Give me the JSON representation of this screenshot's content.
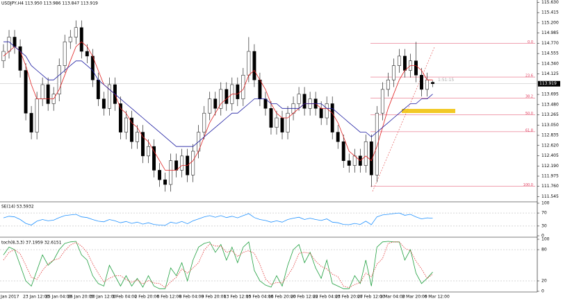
{
  "chart_data": [
    {
      "type": "candlestick",
      "title": "USDJPY,H4 113.950 113.986 113.847 113.919",
      "bid": {
        "value": 113.919,
        "label": "113.919"
      },
      "timer": "1:51:15",
      "categories": [
        "Jan 2017",
        null,
        null,
        null,
        "23 Jan 12:00",
        null,
        null,
        null,
        "25 Jan 04:00",
        null,
        null,
        null,
        "26 Jan 20:00",
        null,
        null,
        null,
        "30 Jan 12:00",
        null,
        null,
        null,
        "1 Feb 04:00",
        null,
        null,
        null,
        "2 Feb 20:00",
        null,
        null,
        null,
        "6 Feb 12:00",
        null,
        null,
        null,
        "8 Feb 04:00",
        null,
        null,
        null,
        "9 Feb 20:00",
        null,
        null,
        null,
        "13 Feb 12:00",
        null,
        null,
        null,
        "15 Feb 04:00",
        null,
        null,
        null,
        "16 Feb 20:00",
        null,
        null,
        null,
        "20 Feb 12:00",
        null,
        null,
        null,
        "22 Feb 04:00",
        null,
        null,
        null,
        "23 Feb 20:00",
        null,
        null,
        null,
        "27 Feb 12:00",
        null,
        null,
        null,
        "1 Mar 04:00",
        null,
        null,
        null,
        "2 Mar 20:00",
        null,
        null,
        null,
        "6 Mar 12:00",
        null
      ],
      "open": [
        114.4,
        114.6,
        114.9,
        114.7,
        114.2,
        113.3,
        112.9,
        113.6,
        113.9,
        113.5,
        113.7,
        114.3,
        114.8,
        114.9,
        115.1,
        114.6,
        114.5,
        114.0,
        113.6,
        113.4,
        113.9,
        113.5,
        112.9,
        113.2,
        112.7,
        112.9,
        112.4,
        112.6,
        112.1,
        111.9,
        111.8,
        112.3,
        112.1,
        112.4,
        112.0,
        112.5,
        112.9,
        113.3,
        113.6,
        113.4,
        113.8,
        113.5,
        113.9,
        113.6,
        114.1,
        114.6,
        114.0,
        113.6,
        113.4,
        113.0,
        113.2,
        112.9,
        113.3,
        113.5,
        113.7,
        113.4,
        113.6,
        113.4,
        113.2,
        113.5,
        112.9,
        112.7,
        112.3,
        112.2,
        112.4,
        112.2,
        112.7,
        112.0,
        113.3,
        113.8,
        114.0,
        114.3,
        114.5,
        114.2,
        114.4,
        114.1,
        113.8,
        113.95
      ],
      "high": [
        114.75,
        115.05,
        115.05,
        114.85,
        114.35,
        113.45,
        113.75,
        114.05,
        114.05,
        113.85,
        114.45,
        114.95,
        115.05,
        115.25,
        115.25,
        114.75,
        114.65,
        114.15,
        113.75,
        114.05,
        114.05,
        113.65,
        113.35,
        113.35,
        113.05,
        113.05,
        112.75,
        112.75,
        112.25,
        112.05,
        112.45,
        112.45,
        112.55,
        112.55,
        112.65,
        113.05,
        113.45,
        113.75,
        113.75,
        113.95,
        113.95,
        114.05,
        114.05,
        114.25,
        114.9,
        114.75,
        114.15,
        113.75,
        113.55,
        113.35,
        113.35,
        113.45,
        113.65,
        113.85,
        113.85,
        113.75,
        113.75,
        113.55,
        113.65,
        113.65,
        113.05,
        112.85,
        112.45,
        112.55,
        112.55,
        112.85,
        112.85,
        113.45,
        113.95,
        114.15,
        114.45,
        114.65,
        114.65,
        114.55,
        114.8,
        114.25,
        114.15,
        113.986
      ],
      "low": [
        114.25,
        114.45,
        114.55,
        114.05,
        113.15,
        112.75,
        112.75,
        113.45,
        113.35,
        113.35,
        113.55,
        114.15,
        114.65,
        114.75,
        114.45,
        114.35,
        113.85,
        113.45,
        113.25,
        113.25,
        113.35,
        112.75,
        112.75,
        112.55,
        112.55,
        112.25,
        112.25,
        111.95,
        111.75,
        111.65,
        111.65,
        111.95,
        111.95,
        111.85,
        111.85,
        112.35,
        112.75,
        113.15,
        113.25,
        113.25,
        113.35,
        113.35,
        113.45,
        113.45,
        113.95,
        113.85,
        113.45,
        113.25,
        112.85,
        112.85,
        112.75,
        112.75,
        113.15,
        113.35,
        113.25,
        113.25,
        113.25,
        113.05,
        113.05,
        112.75,
        112.55,
        112.15,
        112.05,
        112.05,
        112.05,
        112.05,
        111.75,
        111.85,
        113.15,
        113.65,
        113.85,
        114.15,
        114.05,
        114.05,
        113.95,
        113.65,
        113.65,
        113.847
      ],
      "close": [
        114.6,
        114.9,
        114.7,
        114.2,
        113.3,
        112.9,
        113.6,
        113.9,
        113.5,
        113.7,
        114.3,
        114.8,
        114.9,
        115.1,
        114.6,
        114.5,
        114.0,
        113.6,
        113.4,
        113.9,
        113.5,
        112.9,
        113.2,
        112.7,
        112.9,
        112.4,
        112.6,
        112.1,
        111.9,
        111.8,
        112.3,
        112.1,
        112.4,
        112.0,
        112.5,
        112.9,
        113.3,
        113.6,
        113.4,
        113.8,
        113.5,
        113.9,
        113.6,
        114.1,
        114.6,
        114.0,
        113.6,
        113.4,
        113.0,
        113.2,
        112.9,
        113.3,
        113.5,
        113.7,
        113.4,
        113.6,
        113.4,
        113.2,
        113.5,
        112.9,
        112.7,
        112.3,
        112.2,
        112.4,
        112.2,
        112.7,
        112.0,
        113.3,
        113.8,
        114.0,
        114.3,
        114.5,
        114.2,
        114.4,
        114.1,
        113.8,
        114.0,
        113.919
      ],
      "series": [
        {
          "color": "#e02020",
          "values": [
            114.5,
            114.6,
            114.7,
            114.6,
            114.3,
            113.9,
            113.6,
            113.6,
            113.6,
            113.6,
            113.8,
            114.1,
            114.4,
            114.7,
            114.8,
            114.7,
            114.5,
            114.2,
            113.9,
            113.8,
            113.7,
            113.4,
            113.3,
            113.1,
            113.0,
            112.8,
            112.7,
            112.5,
            112.3,
            112.1,
            112.1,
            112.1,
            112.2,
            112.2,
            112.3,
            112.5,
            112.8,
            113.1,
            113.3,
            113.5,
            113.6,
            113.7,
            113.7,
            113.8,
            114.1,
            114.2,
            114.0,
            113.8,
            113.5,
            113.3,
            113.2,
            113.2,
            113.3,
            113.4,
            113.5,
            113.5,
            113.5,
            113.4,
            113.4,
            113.3,
            113.1,
            112.8,
            112.5,
            112.4,
            112.3,
            112.4,
            112.3,
            112.6,
            113.0,
            113.4,
            113.7,
            114.0,
            114.2,
            114.3,
            114.3,
            114.2,
            114.0,
            114.0
          ]
        },
        {
          "color": "#1a1aa0",
          "values": [
            114.8,
            114.8,
            114.7,
            114.6,
            114.5,
            114.3,
            114.2,
            114.1,
            114.0,
            114.0,
            114.1,
            114.2,
            114.3,
            114.4,
            114.4,
            114.3,
            114.2,
            114.0,
            113.9,
            113.8,
            113.7,
            113.6,
            113.5,
            113.4,
            113.3,
            113.2,
            113.1,
            113.0,
            112.9,
            112.8,
            112.7,
            112.6,
            112.6,
            112.6,
            112.6,
            112.7,
            112.8,
            112.9,
            113.0,
            113.1,
            113.2,
            113.3,
            113.3,
            113.4,
            113.5,
            113.6,
            113.6,
            113.6,
            113.5,
            113.5,
            113.4,
            113.4,
            113.4,
            113.4,
            113.5,
            113.5,
            113.5,
            113.5,
            113.4,
            113.4,
            113.3,
            113.2,
            113.1,
            113.0,
            112.9,
            112.9,
            112.8,
            112.9,
            113.0,
            113.1,
            113.2,
            113.3,
            113.4,
            113.5,
            113.5,
            113.6,
            113.6,
            113.7
          ]
        }
      ],
      "fib": [
        {
          "label": "0.0",
          "price": 114.77
        },
        {
          "label": "23.6",
          "price": 114.06
        },
        {
          "label": "38.2",
          "price": 113.62
        },
        {
          "label": "50.0",
          "price": 113.265
        },
        {
          "label": "61.8",
          "price": 112.91
        },
        {
          "label": "100.0",
          "price": 111.76
        }
      ],
      "ylim": [
        111.45,
        115.68
      ],
      "yticks": [
        {
          "value": 115.63,
          "label": "115.630"
        },
        {
          "value": 115.415,
          "label": "115.415"
        },
        {
          "value": 115.2,
          "label": "115.200"
        },
        {
          "value": 114.985,
          "label": "114.985"
        },
        {
          "value": 114.77,
          "label": "114.770"
        },
        {
          "value": 114.555,
          "label": "114.555"
        },
        {
          "value": 114.34,
          "label": "114.340"
        },
        {
          "value": 114.125,
          "label": "114.125"
        },
        {
          "value": 113.695,
          "label": "113.695"
        },
        {
          "value": 113.48,
          "label": "113.480"
        },
        {
          "value": 113.265,
          "label": "113.265"
        },
        {
          "value": 113.05,
          "label": "113.050"
        },
        {
          "value": 112.835,
          "label": "112.835"
        },
        {
          "value": 112.62,
          "label": "112.620"
        },
        {
          "value": 112.405,
          "label": "112.405"
        },
        {
          "value": 112.19,
          "label": "112.190"
        },
        {
          "value": 111.975,
          "label": "111.975"
        },
        {
          "value": 111.76,
          "label": "111.760"
        },
        {
          "value": 111.545,
          "label": "111.545"
        }
      ]
    },
    {
      "type": "line",
      "title": "SE(14) 53.5932",
      "ylim": [
        0,
        100
      ],
      "yticks": [
        100,
        70,
        30,
        0
      ],
      "levels": [
        70,
        30
      ],
      "series": [
        {
          "color": "#1e90ff",
          "values": [
            55,
            60,
            58,
            50,
            38,
            33,
            45,
            50,
            46,
            48,
            56,
            62,
            64,
            66,
            58,
            56,
            50,
            45,
            43,
            50,
            46,
            40,
            44,
            38,
            42,
            36,
            40,
            35,
            33,
            32,
            42,
            38,
            44,
            37,
            46,
            52,
            58,
            62,
            57,
            62,
            56,
            60,
            55,
            62,
            68,
            56,
            50,
            47,
            42,
            46,
            42,
            50,
            54,
            57,
            50,
            54,
            50,
            47,
            52,
            42,
            40,
            35,
            34,
            38,
            35,
            45,
            34,
            58,
            64,
            66,
            68,
            70,
            63,
            66,
            58,
            52,
            55,
            54
          ]
        }
      ]
    },
    {
      "type": "line",
      "title": "toch(8,3,3) 37.1959 32.6151",
      "ylim": [
        0,
        100
      ],
      "yticks": [
        100,
        80,
        20,
        0
      ],
      "levels": [
        80,
        20
      ],
      "series": [
        {
          "color": "#20a040",
          "values": [
            70,
            85,
            80,
            50,
            20,
            10,
            40,
            70,
            50,
            60,
            80,
            92,
            95,
            96,
            70,
            60,
            30,
            15,
            10,
            50,
            30,
            10,
            30,
            10,
            25,
            8,
            30,
            10,
            5,
            5,
            45,
            30,
            55,
            20,
            60,
            85,
            92,
            95,
            75,
            90,
            60,
            85,
            55,
            85,
            95,
            40,
            20,
            12,
            8,
            30,
            10,
            50,
            80,
            90,
            55,
            75,
            45,
            25,
            60,
            15,
            10,
            5,
            5,
            30,
            15,
            60,
            10,
            85,
            95,
            96,
            95,
            95,
            60,
            80,
            35,
            15,
            25,
            37
          ]
        },
        {
          "color": "#e03030",
          "dash": true,
          "values": [
            60,
            75,
            80,
            72,
            50,
            27,
            23,
            40,
            53,
            60,
            63,
            78,
            89,
            94,
            87,
            75,
            53,
            35,
            18,
            25,
            30,
            30,
            23,
            17,
            22,
            14,
            21,
            16,
            15,
            7,
            18,
            27,
            43,
            35,
            45,
            55,
            79,
            91,
            87,
            87,
            75,
            78,
            67,
            75,
            78,
            73,
            52,
            24,
            13,
            17,
            16,
            30,
            47,
            73,
            75,
            73,
            58,
            48,
            43,
            33,
            28,
            10,
            7,
            13,
            17,
            35,
            28,
            52,
            63,
            92,
            95,
            95,
            83,
            78,
            58,
            43,
            25,
            33
          ]
        }
      ]
    }
  ]
}
